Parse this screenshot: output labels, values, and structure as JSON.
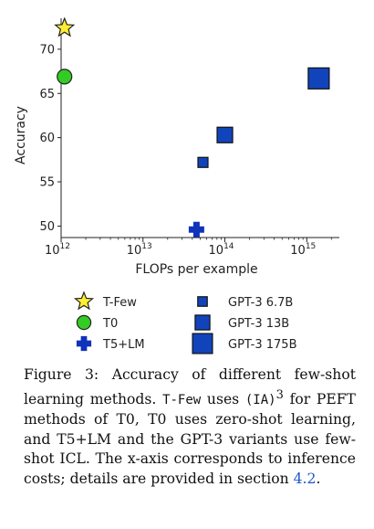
{
  "chart_data": {
    "type": "scatter",
    "xlabel": "FLOPs per example",
    "ylabel": "Accuracy",
    "x_scale": "log",
    "xlim": [
      1000000000000.0,
      2500000000000000.0
    ],
    "ylim": [
      48.7,
      73.5
    ],
    "x_ticks": [
      1000000000000.0,
      10000000000000.0,
      100000000000000.0,
      1000000000000000.0
    ],
    "x_tick_labels": [
      {
        "base": "10",
        "exp": "12"
      },
      {
        "base": "10",
        "exp": "13"
      },
      {
        "base": "10",
        "exp": "14"
      },
      {
        "base": "10",
        "exp": "15"
      }
    ],
    "y_ticks": [
      50,
      55,
      60,
      65,
      70
    ],
    "grid": false,
    "legend_position": "bottom",
    "series": [
      {
        "name": "T-Few",
        "marker": "star",
        "color": "#ffee33",
        "edge": "#222222",
        "x": 1100000000000.0,
        "y": 72.4
      },
      {
        "name": "T0",
        "marker": "circle",
        "color": "#33cc22",
        "edge": "#222222",
        "x": 1100000000000.0,
        "y": 66.9
      },
      {
        "name": "T5+LM",
        "marker": "plus",
        "color": "#1133bb",
        "edge": "#1133bb",
        "x": 45000000000000.0,
        "y": 49.6
      },
      {
        "name": "GPT-3 6.7B",
        "marker": "square",
        "size": "small",
        "color": "#1144bb",
        "edge": "#111111",
        "x": 54000000000000.0,
        "y": 57.2
      },
      {
        "name": "GPT-3 13B",
        "marker": "square",
        "size": "medium",
        "color": "#1144bb",
        "edge": "#111111",
        "x": 100000000000000.0,
        "y": 60.3
      },
      {
        "name": "GPT-3 175B",
        "marker": "square",
        "size": "large",
        "color": "#1144bb",
        "edge": "#111111",
        "x": 1400000000000000.0,
        "y": 66.7
      }
    ]
  },
  "caption": {
    "label": "Figure 3:",
    "text_1": "Accuracy of different few-shot learning methods.",
    "code_tfew": "T-Few",
    "text_2": "uses",
    "code_ia3": "(IA)",
    "ia3_exp": "3",
    "text_3": "for PEFT methods of T0, T0 uses zero-shot learning, and T5+LM and the GPT-3 variants use few-shot ICL. The x-axis corresponds to inference costs; details are provided in section",
    "ref": "4.2",
    "end": "."
  }
}
